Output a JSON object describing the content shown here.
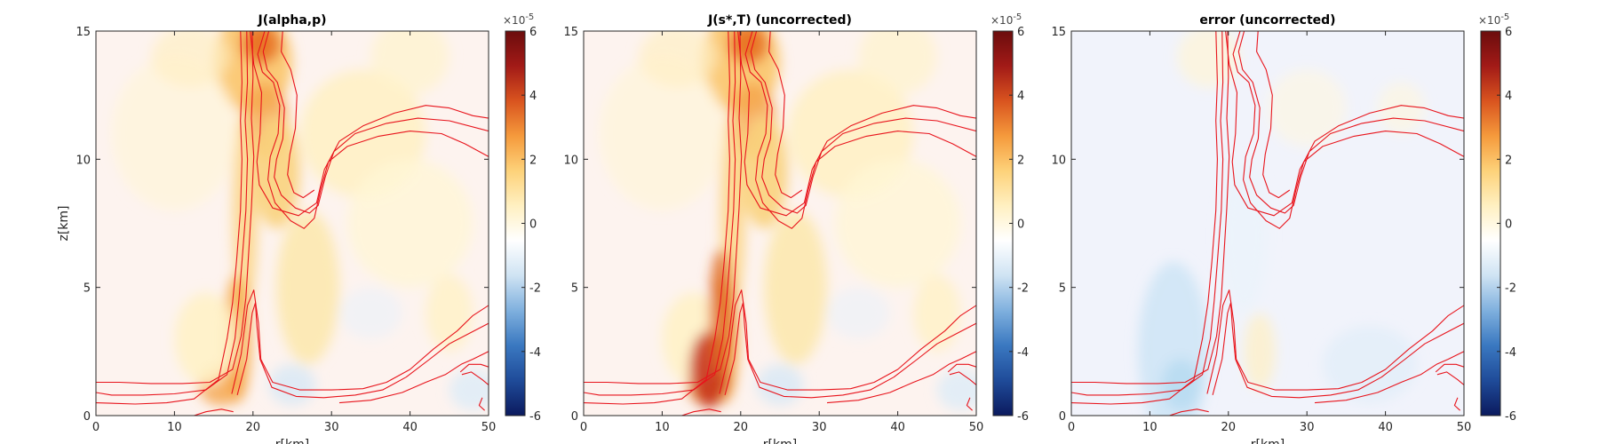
{
  "chart_data": [
    {
      "type": "heatmap",
      "title": "J(alpha,p)",
      "xlabel": "r[km]",
      "ylabel": "z[km]",
      "xlim": [
        0,
        50
      ],
      "ylim": [
        0,
        15
      ],
      "xticks": [
        0,
        10,
        20,
        30,
        40,
        50
      ],
      "yticks": [
        0,
        5,
        10,
        15
      ],
      "colorbar": {
        "min": -6,
        "max": 6,
        "ticks": [
          -6,
          -4,
          -2,
          0,
          2,
          4,
          6
        ],
        "exponent_label": "×10",
        "exponent": "-5"
      },
      "contour_color": "#e8141c"
    },
    {
      "type": "heatmap",
      "title": "J(s*,T) (uncorrected)",
      "xlabel": "r[km]",
      "ylabel": "",
      "xlim": [
        0,
        50
      ],
      "ylim": [
        0,
        15
      ],
      "xticks": [
        0,
        10,
        20,
        30,
        40,
        50
      ],
      "yticks": [
        0,
        5,
        10,
        15
      ],
      "colorbar": {
        "min": -6,
        "max": 6,
        "ticks": [
          -6,
          -4,
          -2,
          0,
          2,
          4,
          6
        ],
        "exponent_label": "×10",
        "exponent": "-5"
      },
      "contour_color": "#e8141c"
    },
    {
      "type": "heatmap",
      "title": "error (uncorrected)",
      "xlabel": "r[km]",
      "ylabel": "",
      "xlim": [
        0,
        50
      ],
      "ylim": [
        0,
        15
      ],
      "xticks": [
        0,
        10,
        20,
        30,
        40,
        50
      ],
      "yticks": [
        0,
        5,
        10,
        15
      ],
      "colorbar": {
        "min": -6,
        "max": 6,
        "ticks": [
          -6,
          -4,
          -2,
          0,
          2,
          4,
          6
        ],
        "exponent_label": "×10",
        "exponent": "-5"
      },
      "contour_color": "#e8141c"
    }
  ],
  "colormap": [
    "#0b1a5e",
    "#1f4b99",
    "#3a78c0",
    "#7fb0de",
    "#cfe3f3",
    "#ffffff",
    "#fff0c2",
    "#fdd27a",
    "#f59a3c",
    "#d9541f",
    "#a21a17",
    "#6b0d0d"
  ]
}
